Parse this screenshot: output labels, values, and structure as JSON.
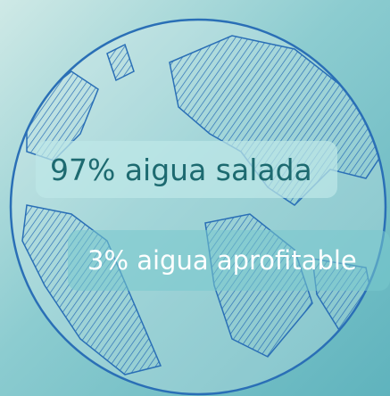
{
  "labels": [
    "97% aigua salada",
    "3% aigua aprofitable"
  ]
}
